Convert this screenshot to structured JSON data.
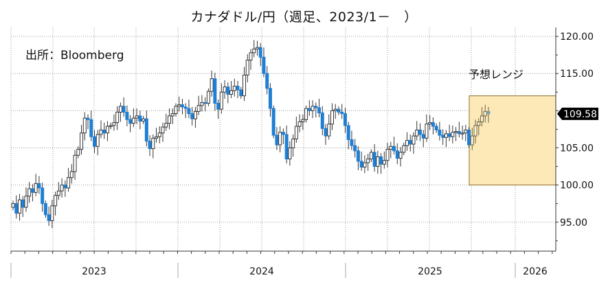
{
  "title": "カナダドル/円（週足、2023/1－　）",
  "source": "出所：Bloomberg",
  "forecast_label": "予想レンジ",
  "last_price_label": "109.58",
  "colors": {
    "up_body": "#ffffff",
    "up_outline": "#333333",
    "down_body": "#1f7fd4",
    "forecast_fill": "#fde9b8",
    "forecast_border": "#8a6d2a",
    "grid": "#999999"
  },
  "chart_data": {
    "type": "candlestick",
    "title": "カナダドル/円（週足、2023/1－　）",
    "annotation_source": "出所：Bloomberg",
    "frequency": "weekly",
    "y_axis": {
      "position": "right",
      "ticks": [
        95,
        100,
        105,
        110,
        115,
        120
      ],
      "tick_labels": [
        "95.00",
        "100.00",
        "105.00",
        "",
        "115.00",
        "120.00"
      ],
      "range": [
        91.5,
        121.5
      ]
    },
    "x_axis": {
      "year_labels": [
        "2023",
        "2024",
        "2025",
        "2026"
      ],
      "gridlines": "quarterly"
    },
    "grid": true,
    "last_value": 109.58,
    "forecast_range": {
      "label": "予想レンジ",
      "low": 100.0,
      "high": 112.0,
      "period": "2025-Q3 to 2026-Q1"
    },
    "weekly_close_approx": [
      97.5,
      96.2,
      98.0,
      97.0,
      98.5,
      99.5,
      99.0,
      100.2,
      99.6,
      97.5,
      96.0,
      95.2,
      97.2,
      98.6,
      99.2,
      100.0,
      99.6,
      101.0,
      101.8,
      104.0,
      104.8,
      107.0,
      109.0,
      108.8,
      106.5,
      105.2,
      106.8,
      107.4,
      107.0,
      107.9,
      108.0,
      108.4,
      109.8,
      110.6,
      109.8,
      108.8,
      108.3,
      109.0,
      109.3,
      108.6,
      108.9,
      105.9,
      104.9,
      106.3,
      106.5,
      107.0,
      107.8,
      108.3,
      109.3,
      109.6,
      110.6,
      110.8,
      110.5,
      110.3,
      109.6,
      108.9,
      109.9,
      110.7,
      111.1,
      111.0,
      112.6,
      114.3,
      111.0,
      110.2,
      112.5,
      113.2,
      112.2,
      112.7,
      113.3,
      112.8,
      112.0,
      114.8,
      116.8,
      117.8,
      118.3,
      118.5,
      117.2,
      115.0,
      113.0,
      110.3,
      106.7,
      105.4,
      107.1,
      106.8,
      103.5,
      105.0,
      106.2,
      107.9,
      108.5,
      108.8,
      110.3,
      110.0,
      110.6,
      110.4,
      109.7,
      107.6,
      106.6,
      108.2,
      110.0,
      110.2,
      109.8,
      109.6,
      108.0,
      106.1,
      105.3,
      104.6,
      103.2,
      102.4,
      103.0,
      103.5,
      104.4,
      102.5,
      103.8,
      102.8,
      103.3,
      104.8,
      105.2,
      104.6,
      103.6,
      104.4,
      105.3,
      106.0,
      105.5,
      106.6,
      107.4,
      106.8,
      106.3,
      108.2,
      108.4,
      107.9,
      107.4,
      106.7,
      106.4,
      106.9,
      106.5,
      107.1,
      107.2,
      106.9,
      107.0,
      107.4,
      105.4,
      106.6,
      108.0,
      108.5,
      109.3,
      109.9,
      109.58
    ]
  }
}
